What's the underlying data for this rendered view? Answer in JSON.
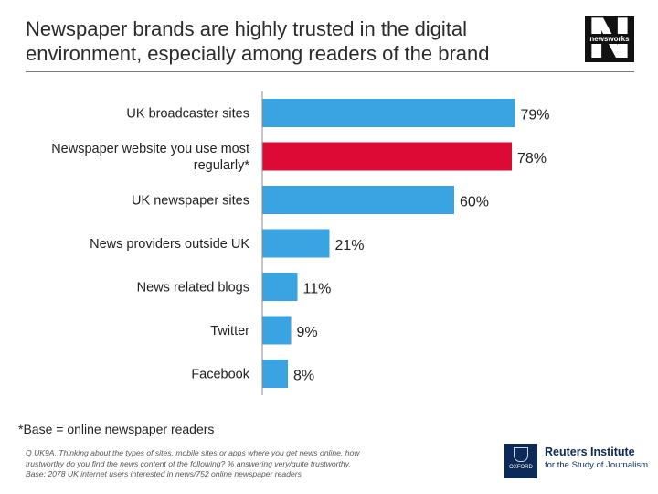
{
  "header": {
    "title_line1": "Newspaper brands are highly trusted in the digital",
    "title_line2": "environment, especially among readers of the brand"
  },
  "logo": {
    "letter": "N",
    "word": "newsworks"
  },
  "colors": {
    "default_bar": "#3aa3e2",
    "highlight_bar": "#dd0a35",
    "axis": "#888888"
  },
  "chart_data": {
    "type": "bar",
    "orientation": "horizontal",
    "title": "Newspaper brands are highly trusted in the digital environment, especially among readers of the brand",
    "xlabel": "",
    "ylabel": "",
    "xlim": [
      0,
      100
    ],
    "value_suffix": "%",
    "grid": false,
    "categories": [
      [
        "UK broadcaster sites"
      ],
      [
        "Newspaper website you use most",
        "regularly*"
      ],
      [
        "UK newspaper sites"
      ],
      [
        "News providers  outside UK"
      ],
      [
        "News related blogs"
      ],
      [
        "Twitter"
      ],
      [
        "Facebook"
      ]
    ],
    "values": [
      79,
      78,
      60,
      21,
      11,
      9,
      8
    ],
    "highlight_index": 1
  },
  "footnote": "*Base = online newspaper readers",
  "source": {
    "line1": "Q UK9A. Thinking about the types of sites, mobile sites or apps where you get news online, how",
    "line2": "trustworthy do you find the news content of the following?  % answering very/quite trustworthy.",
    "line3": "Base: 2078 UK internet users interested in news/752 online newspaper readers"
  },
  "oxford": {
    "label": "OXFORD"
  },
  "reuters": {
    "name": "Reuters Institute",
    "subtitle": "for the Study of Journalism"
  }
}
